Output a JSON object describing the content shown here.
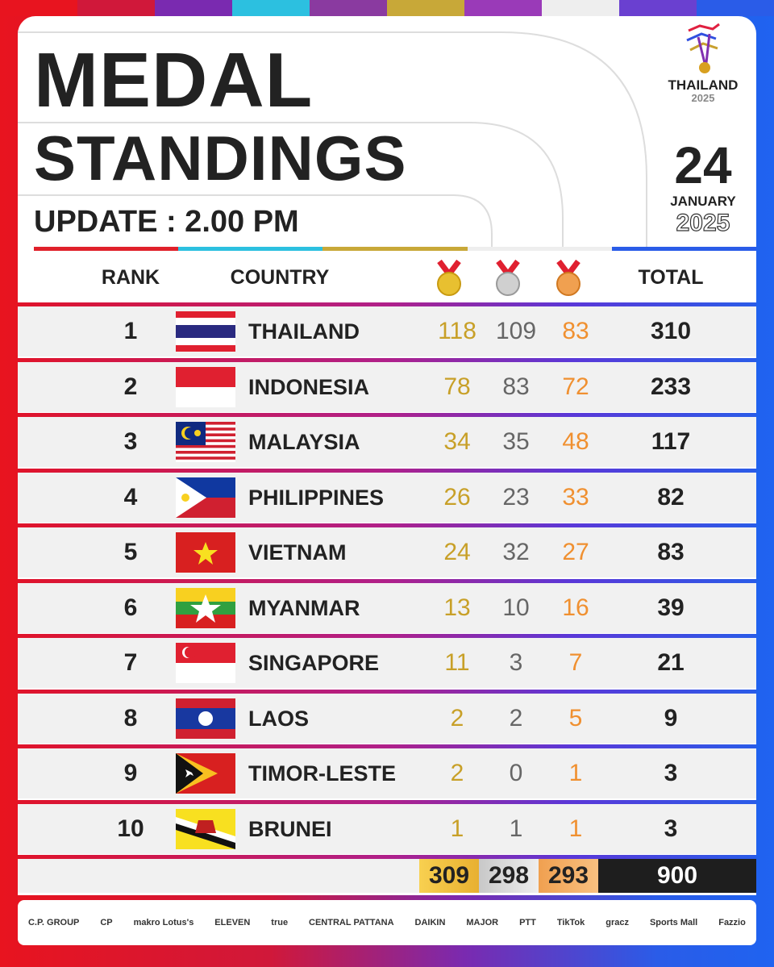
{
  "header": {
    "title_line1": "MEDAL",
    "title_line2": "STANDINGS",
    "update": "UPDATE : 2.00 PM",
    "logo_text": "THAILAND",
    "logo_year": "2025",
    "date_day": "24",
    "date_month": "JANUARY",
    "date_year": "2025"
  },
  "table": {
    "columns": [
      "RANK",
      "COUNTRY",
      "TOTAL"
    ],
    "rows": [
      [
        1,
        "THAILAND",
        118,
        109,
        83,
        310
      ],
      [
        2,
        "INDONESIA",
        78,
        83,
        72,
        233
      ],
      [
        3,
        "MALAYSIA",
        34,
        35,
        48,
        117
      ],
      [
        4,
        "PHILIPPINES",
        26,
        23,
        33,
        82
      ],
      [
        5,
        "VIETNAM",
        24,
        32,
        27,
        83
      ],
      [
        6,
        "MYANMAR",
        13,
        10,
        16,
        39
      ],
      [
        7,
        "SINGAPORE",
        11,
        3,
        7,
        21
      ],
      [
        8,
        "LAOS",
        2,
        2,
        5,
        9
      ],
      [
        9,
        "TIMOR-LESTE",
        2,
        0,
        1,
        3
      ],
      [
        10,
        "BRUNEI",
        1,
        1,
        1,
        3
      ]
    ],
    "totals": [
      309,
      298,
      293,
      900
    ]
  },
  "sponsors": [
    "C.P. GROUP",
    "CP",
    "makro Lotus's",
    "ELEVEN",
    "true",
    "CENTRAL PATTANA",
    "DAIKIN",
    "MAJOR",
    "PTT",
    "TikTok",
    "gracz",
    "Sports Mall",
    "Fazzio"
  ]
}
